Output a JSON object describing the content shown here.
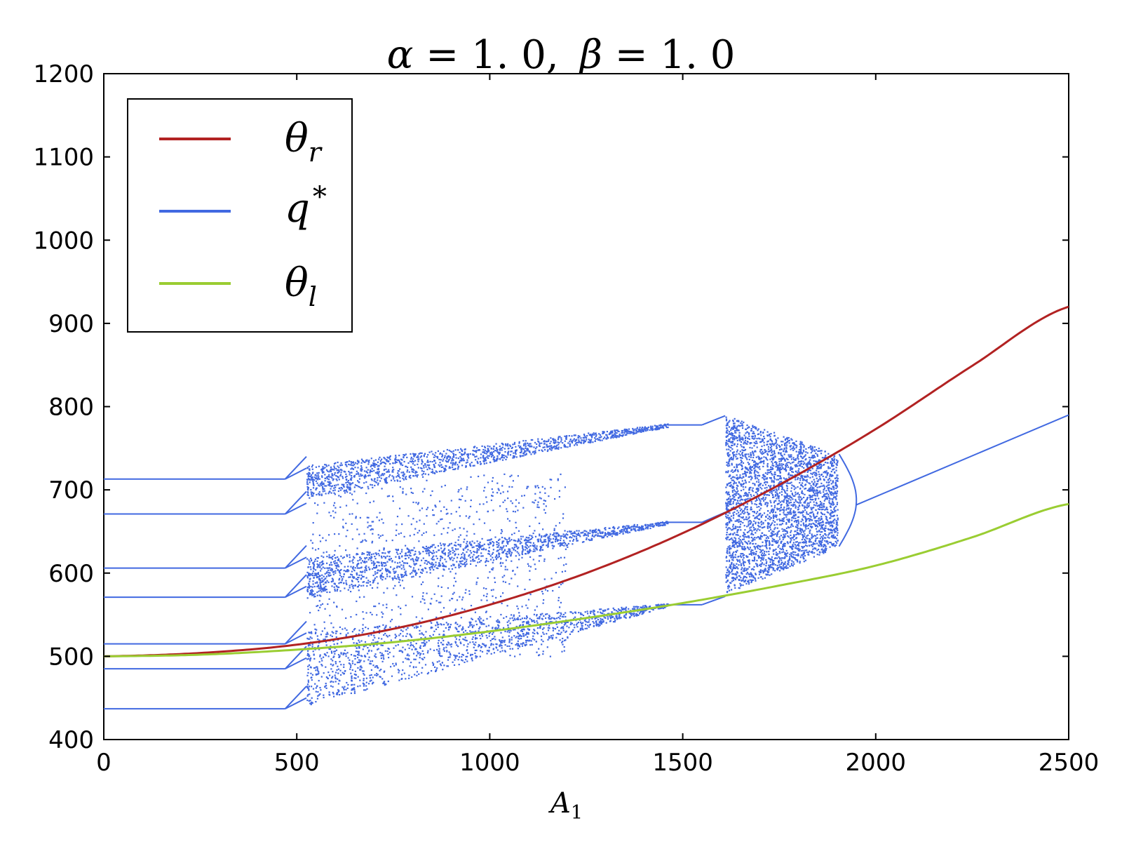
{
  "chart_data": {
    "type": "scatter",
    "title": {
      "alpha_symbol": "α",
      "alpha_eq": " = 1. 0,",
      "beta_symbol": "β",
      "beta_eq": " = 1. 0"
    },
    "xlabel": {
      "main": "A",
      "sub": "1"
    },
    "ylabel": "",
    "xlim": [
      0,
      2500
    ],
    "ylim": [
      400,
      1200
    ],
    "x_ticks": [
      0,
      500,
      1000,
      1500,
      2000,
      2500
    ],
    "y_ticks": [
      400,
      500,
      600,
      700,
      800,
      900,
      1000,
      1100,
      1200
    ],
    "grid": false,
    "legend_position": "top-left",
    "legend": [
      {
        "symbol": "θ",
        "sup": "",
        "sub": "r",
        "color": "#b22222"
      },
      {
        "symbol": "q",
        "sup": "*",
        "sub": "",
        "color": "#4169e1"
      },
      {
        "symbol": "θ",
        "sup": "",
        "sub": "l",
        "color": "#9acd32"
      }
    ],
    "series": [
      {
        "key": "theta_r",
        "color": "#b22222",
        "x": [
          0,
          250,
          500,
          750,
          1000,
          1250,
          1500,
          1750,
          2000,
          2250,
          2500
        ],
        "y": [
          500,
          504,
          514,
          533,
          562,
          600,
          648,
          706,
          773,
          849,
          920
        ]
      },
      {
        "key": "theta_l",
        "color": "#9acd32",
        "x": [
          0,
          250,
          500,
          750,
          1000,
          1250,
          1500,
          1750,
          2000,
          2250,
          2500
        ],
        "y": [
          500,
          502,
          508,
          517,
          530,
          546,
          564,
          585,
          609,
          643,
          683
        ]
      },
      {
        "key": "q_star",
        "color": "#4169e1",
        "fixed_orbit_levels": [
          713,
          671,
          606,
          571,
          515,
          485,
          437
        ],
        "fixed_orbit_x_range": [
          0,
          470
        ],
        "chaos_start_x": 525,
        "period3_levels": [
          778,
          661,
          562
        ],
        "period3_x_range": [
          1460,
          1550
        ],
        "chaos_band_x_range": [
          1610,
          1890
        ],
        "bifurcation_x": 1950,
        "stable_branch": {
          "x": [
            1950,
            2500
          ],
          "y": [
            682,
            790
          ]
        }
      }
    ]
  }
}
